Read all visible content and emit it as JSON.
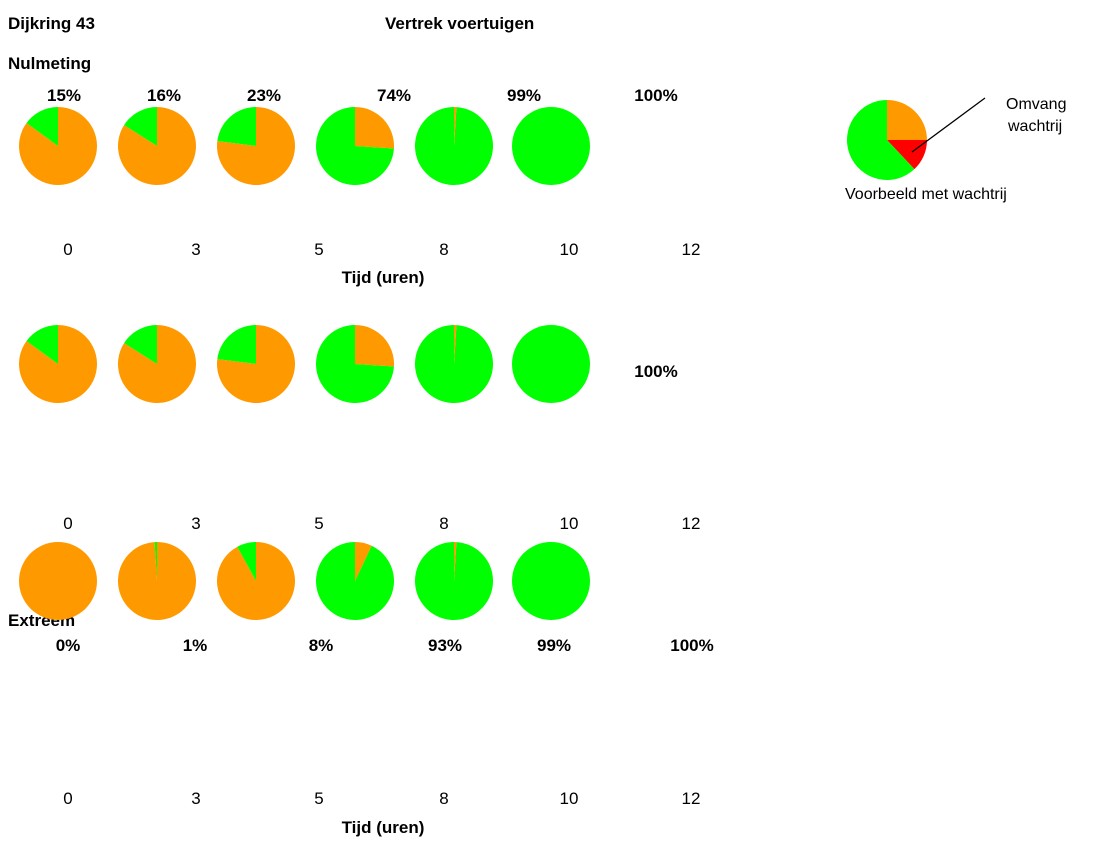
{
  "header": {
    "left_title": "Dijkring 43",
    "center_title": "Vertrek voertuigen"
  },
  "colors": {
    "departed": "#00ff00",
    "remaining": "#ff9900",
    "queue": "#ff0000"
  },
  "chart_data": [
    {
      "type": "pie",
      "label": "Nulmeting",
      "x_ticks": [
        "0",
        "3",
        "5",
        "8",
        "10",
        "12"
      ],
      "xlabel": "Tijd (uren)",
      "percent_labels": [
        "15%",
        "16%",
        "23%",
        "74%",
        "99%",
        "100%"
      ],
      "departed_fraction": [
        0.15,
        0.16,
        0.23,
        0.74,
        0.99,
        1.0
      ]
    },
    {
      "type": "pie",
      "label": "",
      "x_ticks": [
        "0",
        "3",
        "5",
        "8",
        "10",
        "12"
      ],
      "xlabel": "",
      "percent_labels": [
        "",
        "",
        "",
        "",
        "",
        "100%"
      ],
      "departed_fraction": [
        0.15,
        0.16,
        0.23,
        0.74,
        0.99,
        1.0
      ]
    },
    {
      "type": "pie",
      "label": "Extreem",
      "x_ticks": [
        "0",
        "3",
        "5",
        "8",
        "10",
        "12"
      ],
      "xlabel": "Tijd (uren)",
      "percent_labels": [
        "0%",
        "1%",
        "8%",
        "93%",
        "99%",
        "100%"
      ],
      "departed_fraction": [
        0.0,
        0.01,
        0.08,
        0.93,
        0.99,
        1.0
      ]
    }
  ],
  "legend": {
    "example": {
      "departed_fraction": 0.62,
      "remaining_fraction": 0.25,
      "queue_fraction": 0.13
    },
    "annotation": [
      "Omvang",
      "wachtrij"
    ],
    "caption": "Voorbeeld met wachtrij"
  }
}
